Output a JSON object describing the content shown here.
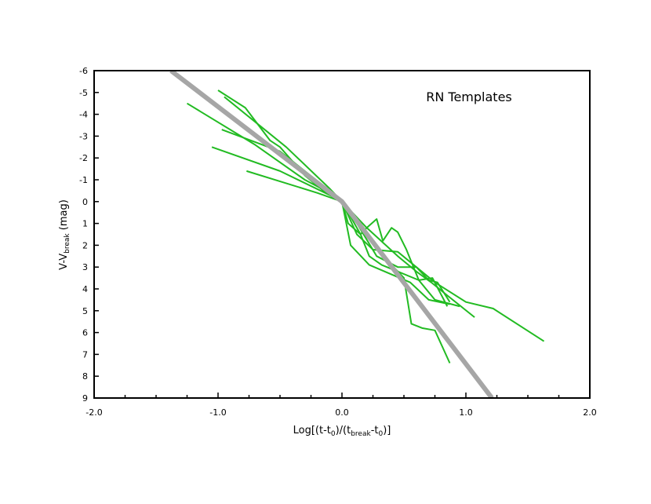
{
  "chart_data": {
    "type": "line",
    "title": "",
    "annotation": "RN Templates",
    "xlabel": {
      "prefix": "Log[(t-t",
      "sub1": "0",
      "mid": ")/(t",
      "sub2": "break",
      "mid2": "-t",
      "sub3": "0",
      "suffix": ")]"
    },
    "ylabel": {
      "prefix": "V-V",
      "sub": "break",
      "suffix": " (mag)"
    },
    "xlim": [
      -2.0,
      2.0
    ],
    "ylim": [
      9,
      -6
    ],
    "y_inverted": true,
    "x_ticks": [
      {
        "v": -2.0,
        "label": "-2.0"
      },
      {
        "v": -1.0,
        "label": "-1.0"
      },
      {
        "v": 0.0,
        "label": "0.0"
      },
      {
        "v": 1.0,
        "label": "1.0"
      },
      {
        "v": 2.0,
        "label": "2.0"
      }
    ],
    "x_minor_ticks": [
      -1.75,
      -1.5,
      -1.25,
      -0.75,
      -0.5,
      -0.25,
      0.25,
      0.5,
      0.75,
      1.25,
      1.5,
      1.75
    ],
    "y_ticks": [
      {
        "v": -6,
        "label": "-6"
      },
      {
        "v": -5,
        "label": "-5"
      },
      {
        "v": -4,
        "label": "-4"
      },
      {
        "v": -3,
        "label": "-3"
      },
      {
        "v": -2,
        "label": "-2"
      },
      {
        "v": -1,
        "label": "-1"
      },
      {
        "v": 0,
        "label": "0"
      },
      {
        "v": 1,
        "label": "1"
      },
      {
        "v": 2,
        "label": "2"
      },
      {
        "v": 3,
        "label": "3"
      },
      {
        "v": 4,
        "label": "4"
      },
      {
        "v": 5,
        "label": "5"
      },
      {
        "v": 6,
        "label": "6"
      },
      {
        "v": 7,
        "label": "7"
      },
      {
        "v": 8,
        "label": "8"
      },
      {
        "v": 9,
        "label": "9"
      }
    ],
    "grid": false,
    "colors": {
      "templates": "#22bb22",
      "fit": "#a6a6a6",
      "axes": "#000000"
    },
    "series": [
      {
        "role": "template",
        "x": [
          -1.0,
          -0.78,
          -0.58,
          -0.5,
          -0.3,
          -0.15,
          0.0,
          0.05,
          0.15,
          0.2,
          0.28,
          0.33,
          0.4,
          0.45,
          0.52,
          0.62,
          0.73,
          0.85
        ],
        "y": [
          -5.1,
          -4.3,
          -2.8,
          -2.5,
          -1.2,
          -0.5,
          0.0,
          1.0,
          1.5,
          1.2,
          0.8,
          1.8,
          1.2,
          1.4,
          2.2,
          3.6,
          3.5,
          4.8
        ]
      },
      {
        "role": "template",
        "x": [
          -1.25,
          -0.7,
          -0.3,
          -0.1,
          0.0,
          0.15,
          0.22,
          0.32,
          0.62,
          0.75,
          0.95
        ],
        "y": [
          -4.5,
          -2.6,
          -1.0,
          -0.4,
          0.0,
          1.5,
          2.5,
          2.9,
          3.6,
          4.5,
          4.8
        ]
      },
      {
        "role": "template",
        "x": [
          -1.05,
          -0.5,
          -0.1,
          0.0,
          0.2,
          0.45,
          0.6,
          0.72,
          0.85,
          1.07
        ],
        "y": [
          -2.5,
          -1.4,
          -0.3,
          0.0,
          1.2,
          2.5,
          3.2,
          3.7,
          4.3,
          5.3
        ]
      },
      {
        "role": "template",
        "x": [
          -0.77,
          -0.2,
          0.0,
          0.07,
          0.22,
          0.55,
          0.7,
          0.87
        ],
        "y": [
          -1.4,
          -0.4,
          0.0,
          2.0,
          2.9,
          3.7,
          4.5,
          4.7
        ]
      },
      {
        "role": "template",
        "x": [
          -0.97,
          -0.5,
          -0.1,
          0.0,
          0.12,
          0.25,
          0.45,
          0.6,
          0.75,
          1.0,
          1.22,
          1.63
        ],
        "y": [
          -3.3,
          -2.3,
          -0.5,
          0.0,
          1.5,
          2.2,
          2.3,
          3.0,
          3.7,
          4.6,
          4.9,
          6.4
        ]
      },
      {
        "role": "template",
        "x": [
          -0.95,
          -0.45,
          -0.1,
          0.0,
          0.1,
          0.28,
          0.45,
          0.6,
          0.7,
          0.77,
          0.87
        ],
        "y": [
          -4.8,
          -2.5,
          -0.6,
          0.0,
          0.8,
          2.5,
          3.0,
          3.0,
          3.6,
          3.7,
          4.6
        ]
      },
      {
        "role": "template",
        "x": [
          0.0,
          0.2,
          0.35,
          0.5,
          0.56,
          0.65,
          0.75,
          0.87
        ],
        "y": [
          0.0,
          1.4,
          2.6,
          3.5,
          5.6,
          5.8,
          5.9,
          7.4
        ]
      },
      {
        "role": "fit",
        "x": [
          -1.38,
          0.0,
          1.21
        ],
        "y": [
          -6.0,
          0.0,
          9.0
        ]
      }
    ]
  }
}
